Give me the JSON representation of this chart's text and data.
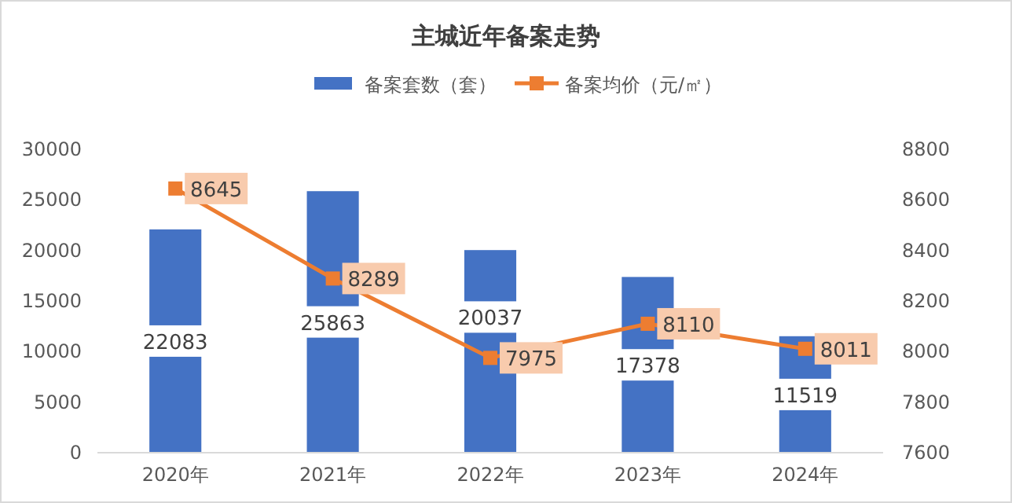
{
  "chart_data": {
    "type": "bar",
    "title": "主城近年备案走势",
    "categories": [
      "2020年",
      "2021年",
      "2022年",
      "2023年",
      "2024年"
    ],
    "series": [
      {
        "name": "备案套数（套）",
        "color": "#4472c4",
        "values": [
          22083,
          25863,
          20037,
          17378,
          11519
        ]
      },
      {
        "name": "备案均价（元/㎡）",
        "type": "line",
        "axis": "y2",
        "color": "#ed7d31",
        "marker": "square",
        "values": [
          8645,
          8289,
          7975,
          8110,
          8011
        ]
      }
    ],
    "ylim": [
      0,
      30000
    ],
    "yticks": [
      0,
      5000,
      10000,
      15000,
      20000,
      25000,
      30000
    ],
    "y2lim": [
      7600,
      8800
    ],
    "y2ticks": [
      7600,
      7800,
      8000,
      8200,
      8400,
      8600,
      8800
    ],
    "data_labels": true,
    "legend": "top",
    "grid": false
  }
}
